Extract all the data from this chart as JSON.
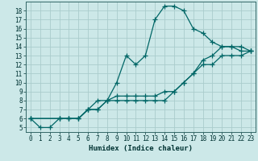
{
  "xlabel": "Humidex (Indice chaleur)",
  "ylabel": "",
  "bg_color": "#cce8e8",
  "grid_color": "#aacccc",
  "line_color": "#006666",
  "xlim": [
    -0.5,
    23.5
  ],
  "ylim": [
    4.5,
    19
  ],
  "xticks": [
    0,
    1,
    2,
    3,
    4,
    5,
    6,
    7,
    8,
    9,
    10,
    11,
    12,
    13,
    14,
    15,
    16,
    17,
    18,
    19,
    20,
    21,
    22,
    23
  ],
  "yticks": [
    5,
    6,
    7,
    8,
    9,
    10,
    11,
    12,
    13,
    14,
    15,
    16,
    17,
    18
  ],
  "series": [
    {
      "x": [
        0,
        1,
        2,
        3,
        4,
        5,
        6,
        7,
        8,
        9,
        10,
        11,
        12,
        13,
        14,
        15,
        16,
        17,
        18,
        19,
        20,
        21,
        22,
        23
      ],
      "y": [
        6,
        5,
        5,
        6,
        6,
        6,
        7,
        8,
        8,
        10,
        13,
        12,
        13,
        17,
        18.5,
        18.5,
        18,
        16,
        15.5,
        14.5,
        14,
        14,
        13.5,
        13.5
      ]
    },
    {
      "x": [
        0,
        3,
        4,
        5,
        6,
        7,
        8,
        9,
        10,
        11,
        12,
        13,
        14,
        15,
        16,
        17,
        18,
        19,
        20,
        21,
        22,
        23
      ],
      "y": [
        6,
        6,
        6,
        6,
        7,
        7,
        8,
        8,
        8,
        8,
        8,
        8,
        8,
        9,
        10,
        11,
        12,
        12,
        13,
        13,
        13,
        13.5
      ]
    },
    {
      "x": [
        0,
        3,
        4,
        5,
        6,
        7,
        8,
        9,
        10,
        11,
        12,
        13,
        14,
        15,
        16,
        17,
        18,
        19,
        20,
        21,
        22,
        23
      ],
      "y": [
        6,
        6,
        6,
        6,
        7,
        7,
        8,
        8.5,
        8.5,
        8.5,
        8.5,
        8.5,
        9,
        9,
        10,
        11,
        12.5,
        13,
        14,
        14,
        14,
        13.5
      ]
    }
  ]
}
